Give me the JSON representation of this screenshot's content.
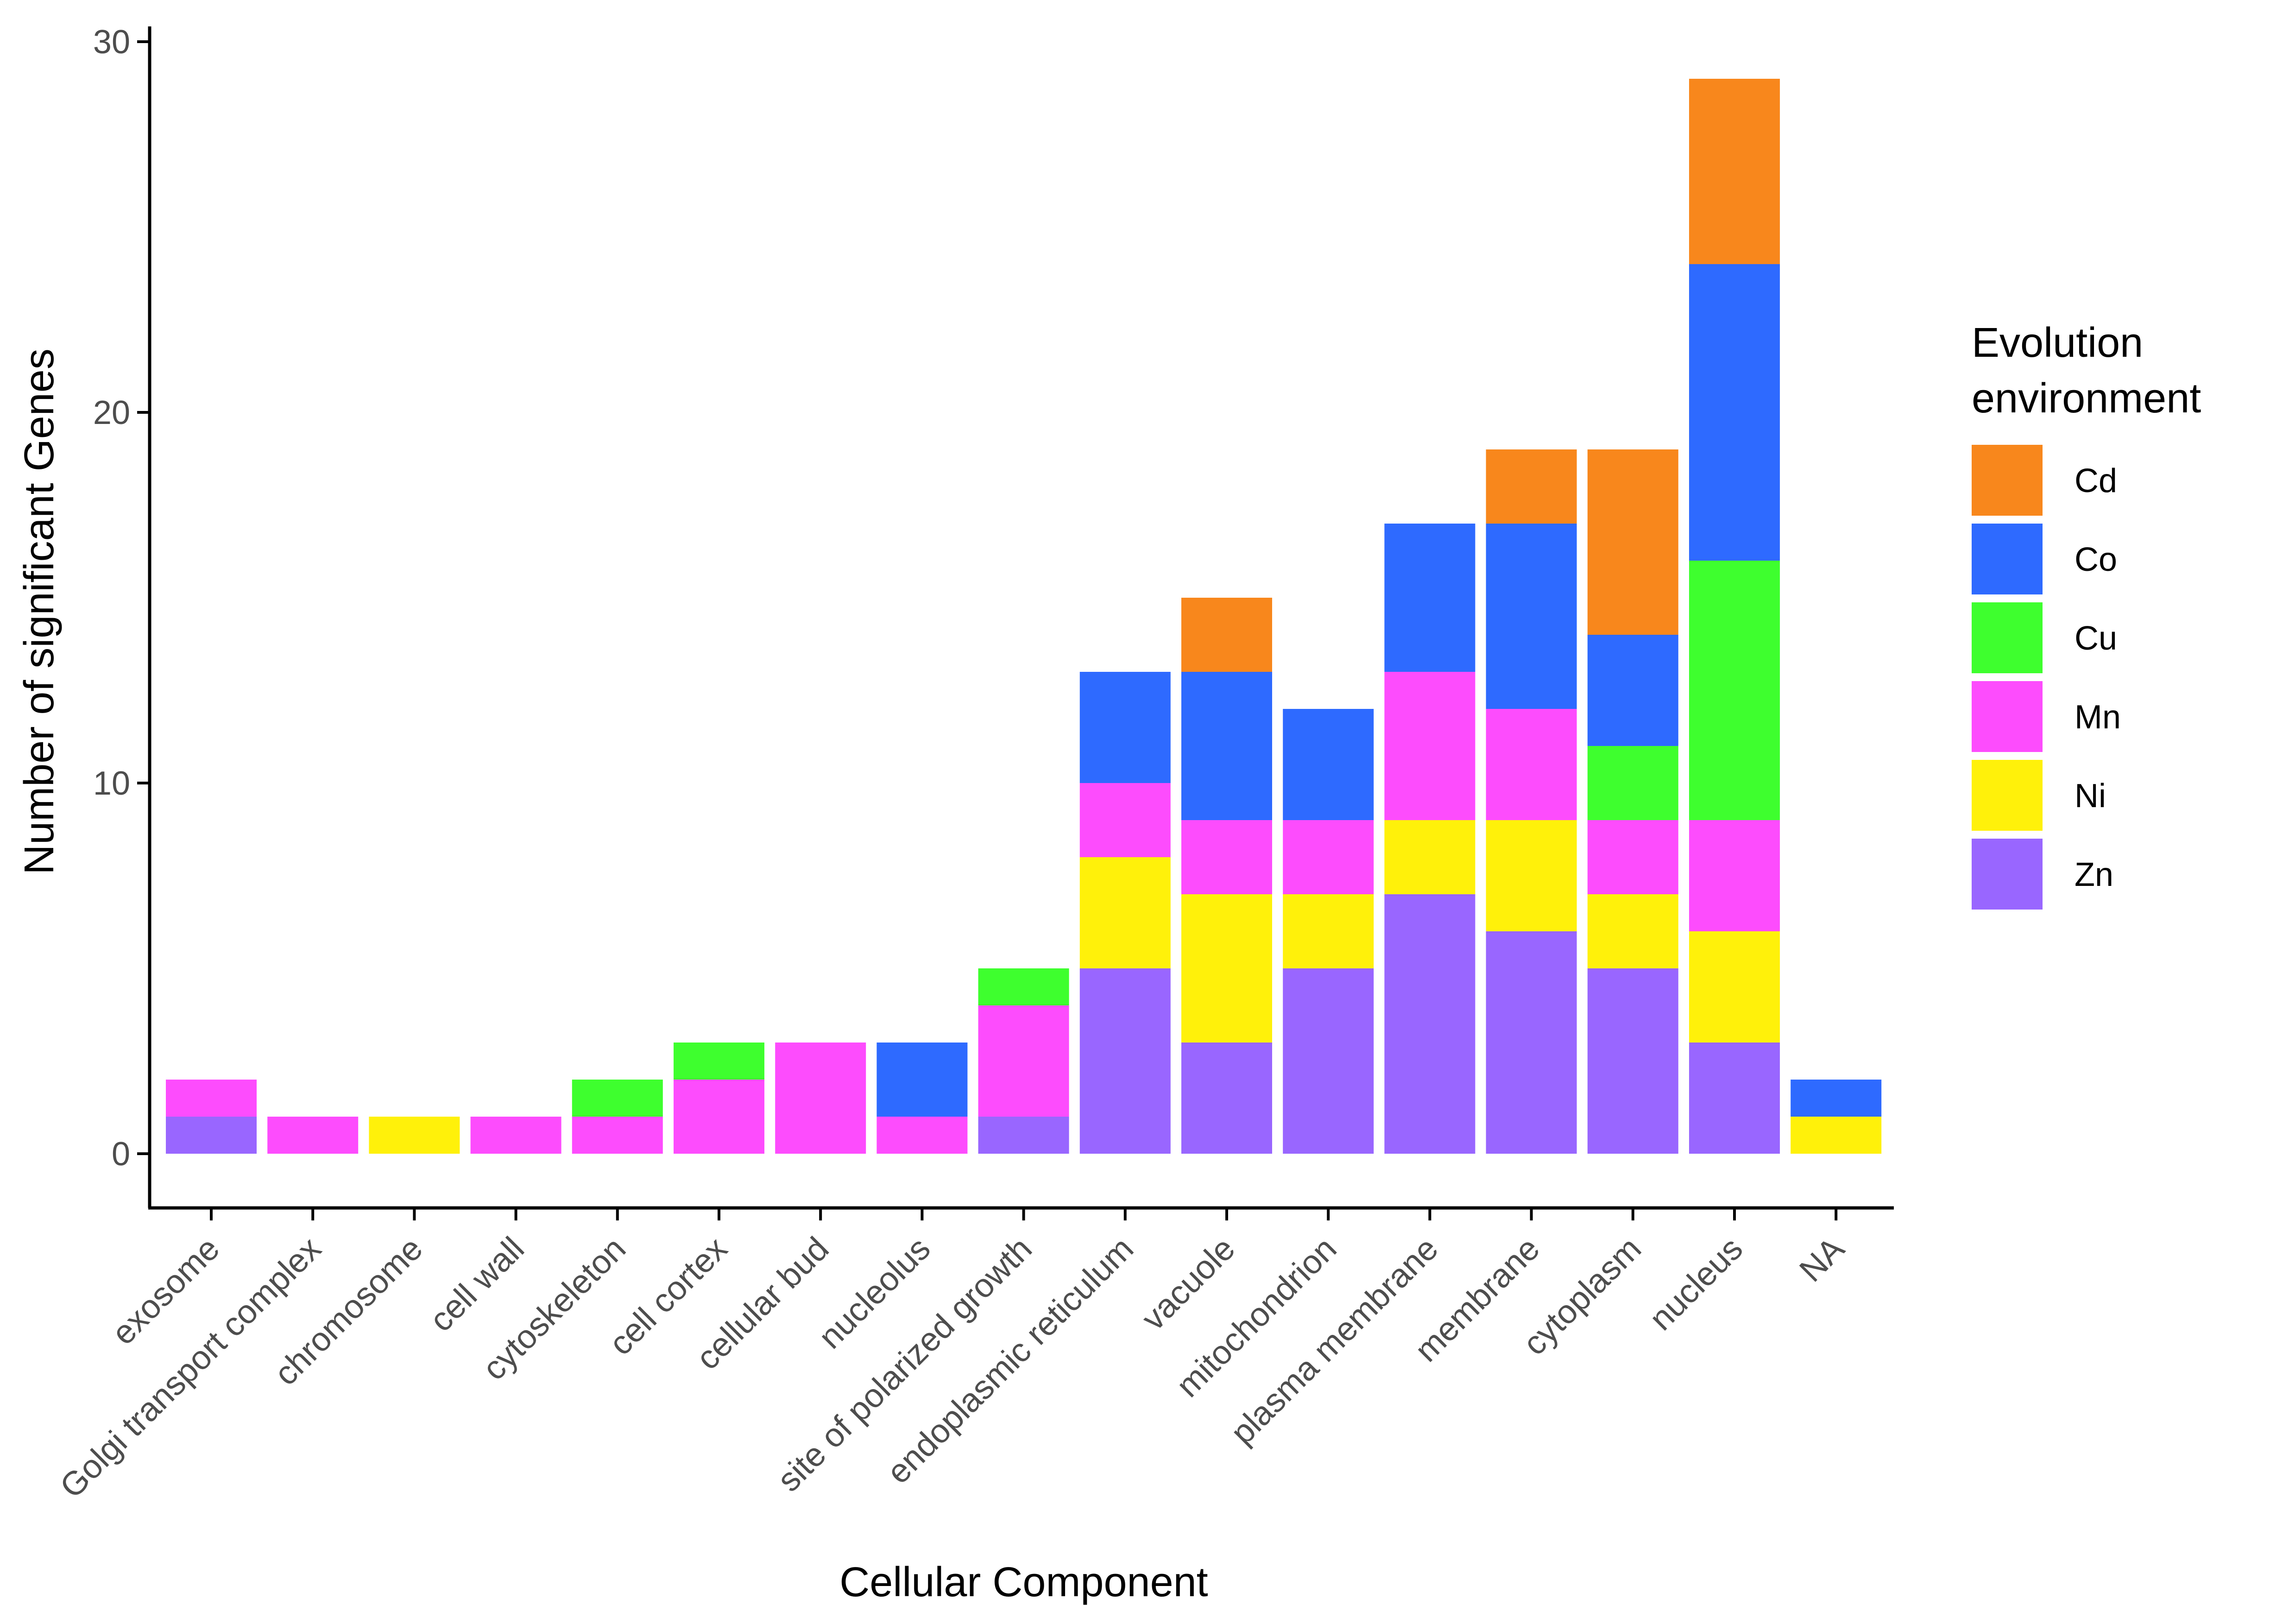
{
  "chart_data": {
    "type": "bar",
    "stacked": true,
    "xlabel": "Cellular Component",
    "ylabel": "Number of significant Genes",
    "ylim": [
      0,
      30
    ],
    "yticks": [
      0,
      10,
      20,
      30
    ],
    "grid": false,
    "legend": {
      "title_lines": [
        "Evolution",
        "environment"
      ],
      "position": "right"
    },
    "categories": [
      "exosome",
      "Golgi transport complex",
      "chromosome",
      "cell wall",
      "cytoskeleton",
      "cell cortex",
      "cellular bud",
      "nucleolus",
      "site of polarized growth",
      "endoplasmic reticulum",
      "vacuole",
      "mitochondrion",
      "plasma membrane",
      "membrane",
      "cytoplasm",
      "nucleus",
      "NA"
    ],
    "series": [
      {
        "name": "Cd",
        "color": "#F8871C",
        "values": [
          0,
          0,
          0,
          0,
          0,
          0,
          0,
          0,
          0,
          0,
          2,
          0,
          0,
          2,
          5,
          5,
          0
        ]
      },
      {
        "name": "Co",
        "color": "#2E6AFF",
        "values": [
          0,
          0,
          0,
          0,
          0,
          0,
          0,
          2,
          0,
          3,
          4,
          3,
          4,
          5,
          3,
          8,
          1
        ]
      },
      {
        "name": "Cu",
        "color": "#3EFF2E",
        "values": [
          0,
          0,
          0,
          0,
          1,
          1,
          0,
          0,
          1,
          0,
          0,
          0,
          0,
          0,
          2,
          7,
          0
        ]
      },
      {
        "name": "Mn",
        "color": "#FD4CFD",
        "values": [
          1,
          1,
          0,
          1,
          1,
          2,
          3,
          1,
          3,
          2,
          2,
          2,
          4,
          3,
          2,
          3,
          0
        ]
      },
      {
        "name": "Ni",
        "color": "#FFF10A",
        "values": [
          0,
          0,
          1,
          0,
          0,
          0,
          0,
          0,
          0,
          3,
          4,
          2,
          2,
          3,
          2,
          3,
          1
        ]
      },
      {
        "name": "Zn",
        "color": "#9966FF",
        "values": [
          1,
          0,
          0,
          0,
          0,
          0,
          0,
          0,
          1,
          5,
          3,
          5,
          7,
          6,
          5,
          3,
          0
        ]
      }
    ]
  }
}
